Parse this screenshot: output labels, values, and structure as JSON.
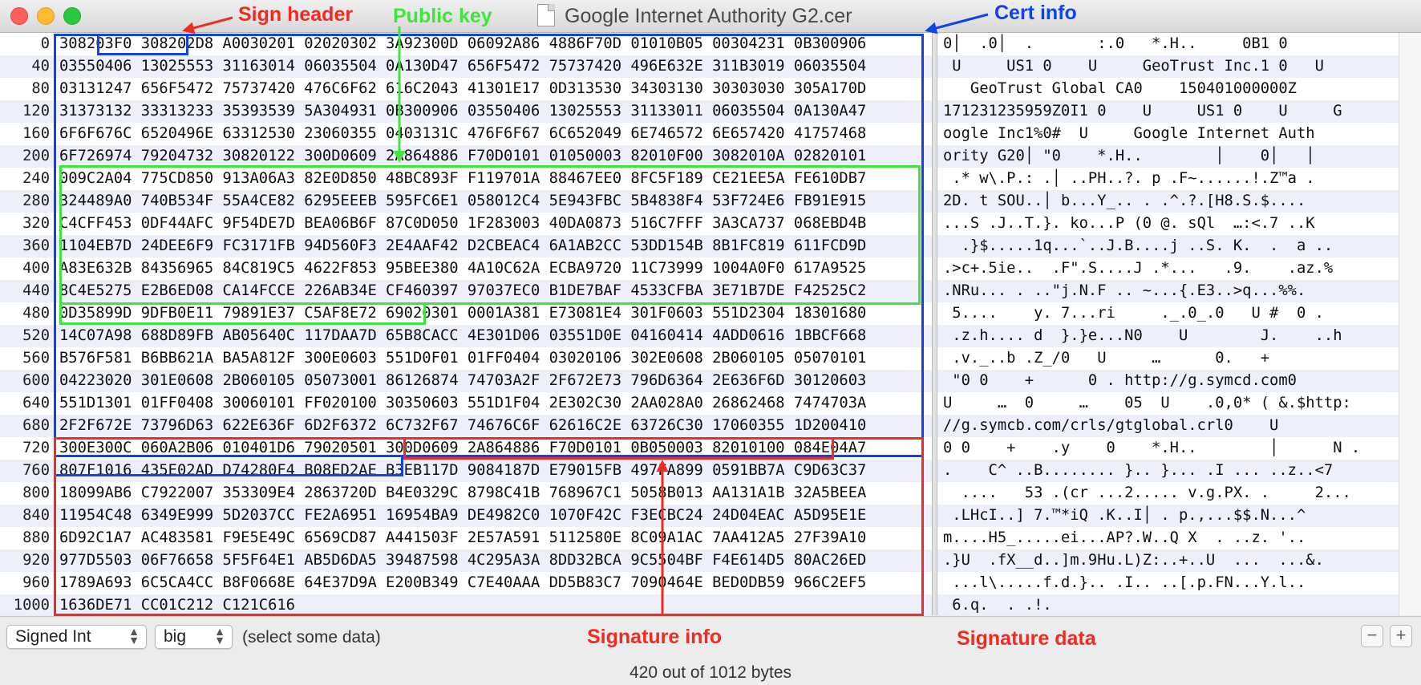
{
  "window": {
    "title": "Google Internet Authority G2.cer"
  },
  "rows": [
    {
      "offset": "0",
      "hex": "308203F0 308202D8 A0030201 02020302 3A92300D 06092A86 4886F70D 01010B05 00304231 0B300906",
      "ascii": "0│  .0│  .       :.0   *.H..     0B1 0"
    },
    {
      "offset": "40",
      "hex": "03550406 13025553 31163014 06035504 0A130D47 656F5472 75737420 496E632E 311B3019 06035504",
      "ascii": " U     US1 0    U     GeoTrust Inc.1 0   U"
    },
    {
      "offset": "80",
      "hex": "03131247 656F5472 75737420 476C6F62 616C2043 41301E17 0D313530 34303130 30303030 305A170D",
      "ascii": "   GeoTrust Global CA0    150401000000Z"
    },
    {
      "offset": "120",
      "hex": "31373132 33313233 35393539 5A304931 0B300906 03550406 13025553 31133011 06035504 0A130A47",
      "ascii": "171231235959Z0I1 0    U     US1 0    U     G"
    },
    {
      "offset": "160",
      "hex": "6F6F676C 6520496E 63312530 23060355 0403131C 476F6F67 6C652049 6E746572 6E657420 41757468",
      "ascii": "oogle Inc1%0#  U     Google Internet Auth"
    },
    {
      "offset": "200",
      "hex": "6F726974 79204732 30820122 300D0609 2A864886 F70D0101 01050003 82010F00 3082010A 02820101",
      "ascii": "ority G20│ \"0    *.H..        │    0│   │"
    },
    {
      "offset": "240",
      "hex": "009C2A04 775CD850 913A06A3 82E0D850 48BC893F F119701A 88467EE0 8FC5F189 CE21EE5A FE610DB7",
      "ascii": " .* w\\.P.: .│ ..PH..?. p .F~......!.Z™a ."
    },
    {
      "offset": "280",
      "hex": "324489A0 740B534F 55A4CE82 6295EEEB 595FC6E1 058012C4 5E943FBC 5B4838F4 53F724E6 FB91E915",
      "ascii": "2D. t SOU..│ b...Y_.. . .^.?.[H8.S.$...."
    },
    {
      "offset": "320",
      "hex": "C4CFF453 0DF44AFC 9F54DE7D BEA06B6F 87C0D050 1F283003 40DA0873 516C7FFF 3A3CA737 068EBD4B",
      "ascii": "...S .J..T.}. ko...P (0 @. sQl  …:<.7 ..K"
    },
    {
      "offset": "360",
      "hex": "1104EB7D 24DEE6F9 FC3171FB 94D560F3 2E4AAF42 D2CBEAC4 6A1AB2CC 53DD154B 8B1FC819 611FCD9D",
      "ascii": "  .}$.....1q...`..J.B....j ..S. K.  .  a .."
    },
    {
      "offset": "400",
      "hex": "A83E632B 84356965 84C819C5 4622F853 95BEE380 4A10C62A ECBA9720 11C73999 1004A0F0 617A9525",
      "ascii": ".>c+.5ie..  .F\".S....J .*...   .9.    .az.%"
    },
    {
      "offset": "440",
      "hex": "8C4E5275 E2B6ED08 CA14FCCE 226AB34E CF460397 97037EC0 B1DE7BAF 4533CFBA 3E71B7DE F42525C2",
      "ascii": ".NRu... . ..\"j.N.F .. ~...{.E3..>q...%%."
    },
    {
      "offset": "480",
      "hex": "0D35899D 9DFB0E11 79891E37 C5AF8E72 69020301 0001A381 E73081E4 301F0603 551D2304 18301680",
      "ascii": " 5....    y. 7...ri     ._.0_.0   U #  0 ."
    },
    {
      "offset": "520",
      "hex": "14C07A98 688D89FB AB05640C 117DAA7D 65B8CACC 4E301D06 03551D0E 04160414 4ADD0616 1BBCF668",
      "ascii": " .z.h.... d  }.}e...N0    U        J.    ..h"
    },
    {
      "offset": "560",
      "hex": "B576F581 B6BB621A BA5A812F 300E0603 551D0F01 01FF0404 03020106 302E0608 2B060105 05070101",
      "ascii": " .v._..b .Z_/0   U     …      0.   +"
    },
    {
      "offset": "600",
      "hex": "04223020 301E0608 2B060105 05073001 86126874 74703A2F 2F672E73 796D6364 2E636F6D 30120603",
      "ascii": " \"0 0    +      0 . http://g.symcd.com0"
    },
    {
      "offset": "640",
      "hex": "551D1301 01FF0408 30060101 FF020100 30350603 551D1F04 2E302C30 2AA028A0 26862468 7474703A",
      "ascii": "U     …  0     …    05  U    .0,0* ( &.$http:"
    },
    {
      "offset": "680",
      "hex": "2F2F672E 73796D63 622E636F 6D2F6372 6C732F67 74676C6F 62616C2E 63726C30 17060355 1D200410",
      "ascii": "//g.symcb.com/crls/gtglobal.crl0    U"
    },
    {
      "offset": "720",
      "hex": "300E300C 060A2B06 010401D6 79020501 300D0609 2A864886 F70D0101 0B050003 82010100 084E04A7",
      "ascii": "0 0    +    .y    0    *.H..        │      N ."
    },
    {
      "offset": "760",
      "hex": "807F1016 435E02AD D74280F4 B08ED2AE B3EB117D 9084187D E79015FB 497FA899 0591BB7A C9D63C37",
      "ascii": ".    C^ ..B........ }.. }... .I ... ..z..<7"
    },
    {
      "offset": "800",
      "hex": "18099AB6 C7922007 353309E4 2863720D B4E0329C 8798C41B 768967C1 5058B013 AA131A1B 32A5BEEA",
      "ascii": "  ....   53 .(cr ...2..... v.g.PX. .     2..."
    },
    {
      "offset": "840",
      "hex": "11954C48 6349E999 5D2037CC FE2A6951 16954BA9 DE4982C0 1070F42C F3ECBC24 24D04EAC A5D95E1E",
      "ascii": " .LHcI..] 7.™*iQ .K..I│ . p.,...$$.N...^"
    },
    {
      "offset": "880",
      "hex": "6D92C1A7 AC483581 F9E5E49C 6569CD87 A441503F 2E57A591 5112580E 8C09A1AC 7AA412A5 27F39A10",
      "ascii": "m....H5_.....ei...AP?.W..Q X  . ..z. '.."
    },
    {
      "offset": "920",
      "hex": "977D5503 06F76658 5F5F64E1 AB5D6DA5 39487598 4C295A3A 8DD32BCA 9C5504BF F4E614D5 80AC26ED",
      "ascii": ".}U  .fX__d..]m.9Hu.L)Z:..+..U  ...  ...&."
    },
    {
      "offset": "960",
      "hex": "1789A693 6C5CA4CC B8F0668E 64E37D9A E200B349 C7E40AAA DD5B83C7 7090464E BED0DB59 966C2EF5",
      "ascii": " ...l\\.....f.d.}.. .I.. ..[.p.FN...Y.l.."
    },
    {
      "offset": "1000",
      "hex": "1636DE71 CC01C212 C121C616",
      "ascii": " 6.q.  . .!."
    }
  ],
  "toolbar": {
    "type_select": "Signed Int",
    "endian_select": "big",
    "selection_hint": "(select some data)",
    "status": "420 out of 1012 bytes"
  },
  "annotations": {
    "sign_header": "Sign header",
    "public_key": "Public key",
    "cert_info": "Cert info",
    "signature_info": "Signature info",
    "signature_data": "Signature data"
  },
  "colors": {
    "cert_info": "#1144e6",
    "public_key": "#41e43c",
    "signature": "#ef2b22",
    "row_alt": "#edf0fb"
  }
}
